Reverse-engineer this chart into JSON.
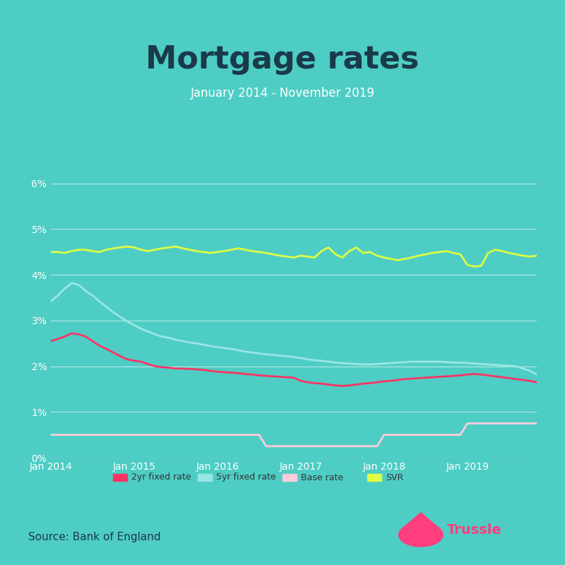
{
  "title": "Mortgage rates",
  "subtitle": "January 2014 - November 2019",
  "source": "Source: Bank of England",
  "background_color": "#4ECDC4",
  "plot_bg_color": "#4ECDC4",
  "title_color": "#1a3a4a",
  "subtitle_color": "#ffffff",
  "axis_label_color": "#ffffff",
  "grid_color": "#ffffff",
  "series": {
    "2yr_fixed": {
      "label": "2yr fixed rate",
      "color": "#FF3366",
      "linewidth": 2.0
    },
    "5yr_fixed": {
      "label": "5yr fixed rate",
      "color": "#99E6E6",
      "linewidth": 2.0
    },
    "base_rate": {
      "label": "Base rate",
      "color": "#FFCCDD",
      "linewidth": 2.0
    },
    "svr": {
      "label": "SVR",
      "color": "#DDFF44",
      "linewidth": 2.0
    }
  },
  "x_ticks": [
    "Jan 2014",
    "Jan 2015",
    "Jan 2016",
    "Jan 2017",
    "Jan 2018",
    "Jan 2019"
  ],
  "y_vals": [
    0,
    1,
    2,
    3,
    4,
    5,
    6
  ],
  "ylim": [
    0,
    6.8
  ],
  "xlim": [
    0,
    70
  ],
  "trussle_color": "#FF3D7F",
  "two_yr": [
    2.55,
    2.6,
    2.65,
    2.72,
    2.7,
    2.65,
    2.55,
    2.45,
    2.38,
    2.3,
    2.22,
    2.15,
    2.12,
    2.1,
    2.05,
    2.0,
    1.98,
    1.97,
    1.95,
    1.95,
    1.94,
    1.93,
    1.92,
    1.9,
    1.88,
    1.87,
    1.86,
    1.85,
    1.83,
    1.82,
    1.8,
    1.79,
    1.78,
    1.77,
    1.76,
    1.75,
    1.68,
    1.65,
    1.63,
    1.62,
    1.6,
    1.58,
    1.57,
    1.58,
    1.6,
    1.62,
    1.63,
    1.65,
    1.67,
    1.68,
    1.7,
    1.72,
    1.73,
    1.74,
    1.75,
    1.76,
    1.77,
    1.78,
    1.79,
    1.8,
    1.82,
    1.83,
    1.82,
    1.8,
    1.78,
    1.76,
    1.74,
    1.72,
    1.7,
    1.68,
    1.65
  ],
  "five_yr": [
    3.42,
    3.55,
    3.7,
    3.82,
    3.78,
    3.65,
    3.55,
    3.42,
    3.3,
    3.18,
    3.08,
    2.98,
    2.9,
    2.82,
    2.76,
    2.7,
    2.65,
    2.62,
    2.58,
    2.55,
    2.52,
    2.5,
    2.47,
    2.44,
    2.42,
    2.4,
    2.38,
    2.35,
    2.32,
    2.3,
    2.28,
    2.26,
    2.25,
    2.23,
    2.22,
    2.2,
    2.18,
    2.15,
    2.13,
    2.12,
    2.1,
    2.08,
    2.07,
    2.06,
    2.05,
    2.04,
    2.04,
    2.05,
    2.06,
    2.07,
    2.08,
    2.09,
    2.1,
    2.1,
    2.1,
    2.1,
    2.1,
    2.09,
    2.08,
    2.08,
    2.07,
    2.06,
    2.05,
    2.04,
    2.03,
    2.02,
    2.01,
    2.0,
    1.95,
    1.9,
    1.82
  ],
  "base": [
    0.5,
    0.5,
    0.5,
    0.5,
    0.5,
    0.5,
    0.5,
    0.5,
    0.5,
    0.5,
    0.5,
    0.5,
    0.5,
    0.5,
    0.5,
    0.5,
    0.5,
    0.5,
    0.5,
    0.5,
    0.5,
    0.5,
    0.5,
    0.5,
    0.5,
    0.5,
    0.5,
    0.5,
    0.5,
    0.5,
    0.5,
    0.25,
    0.25,
    0.25,
    0.25,
    0.25,
    0.25,
    0.25,
    0.25,
    0.25,
    0.25,
    0.25,
    0.25,
    0.25,
    0.25,
    0.25,
    0.25,
    0.25,
    0.5,
    0.5,
    0.5,
    0.5,
    0.5,
    0.5,
    0.5,
    0.5,
    0.5,
    0.5,
    0.5,
    0.5,
    0.75,
    0.75,
    0.75,
    0.75,
    0.75,
    0.75,
    0.75,
    0.75,
    0.75,
    0.75,
    0.75
  ],
  "svr": [
    4.5,
    4.5,
    4.48,
    4.52,
    4.55,
    4.55,
    4.52,
    4.5,
    4.55,
    4.58,
    4.6,
    4.62,
    4.6,
    4.55,
    4.52,
    4.55,
    4.58,
    4.6,
    4.62,
    4.58,
    4.55,
    4.52,
    4.5,
    4.48,
    4.5,
    4.52,
    4.55,
    4.58,
    4.55,
    4.52,
    4.5,
    4.48,
    4.45,
    4.42,
    4.4,
    4.38,
    4.42,
    4.4,
    4.38,
    4.52,
    4.6,
    4.45,
    4.38,
    4.52,
    4.6,
    4.48,
    4.5,
    4.42,
    4.38,
    4.35,
    4.32,
    4.35,
    4.38,
    4.42,
    4.45,
    4.48,
    4.5,
    4.52,
    4.48,
    4.45,
    4.22,
    4.18,
    4.2,
    4.48,
    4.55,
    4.52,
    4.48,
    4.45,
    4.42,
    4.4,
    4.42
  ]
}
